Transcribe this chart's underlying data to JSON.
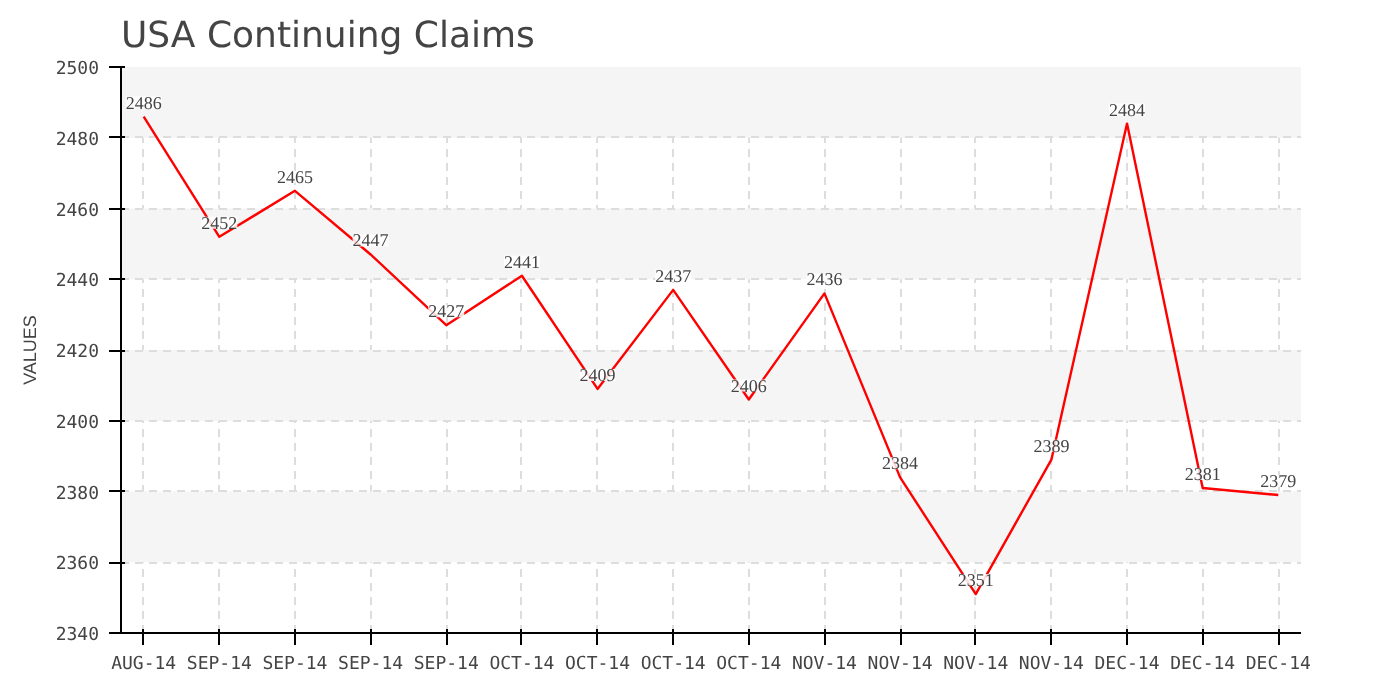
{
  "chart_data": {
    "type": "line",
    "title": "USA Continuing Claims",
    "ylabel": "VALUES",
    "categories": [
      "AUG-14",
      "SEP-14",
      "SEP-14",
      "SEP-14",
      "SEP-14",
      "OCT-14",
      "OCT-14",
      "OCT-14",
      "OCT-14",
      "NOV-14",
      "NOV-14",
      "NOV-14",
      "NOV-14",
      "DEC-14",
      "DEC-14",
      "DEC-14"
    ],
    "series": [
      {
        "color": "#ff0000",
        "values": [
          2486,
          2452,
          2465,
          2447,
          2427,
          2441,
          2409,
          2437,
          2406,
          2436,
          2384,
          2351,
          2389,
          2484,
          2381,
          2379
        ]
      }
    ],
    "ylim": [
      2340,
      2500
    ],
    "yticks": [
      2340,
      2360,
      2380,
      2400,
      2420,
      2440,
      2460,
      2480,
      2500
    ],
    "grid": true,
    "data_labels": true,
    "marker": "none",
    "line_style": "solid"
  }
}
